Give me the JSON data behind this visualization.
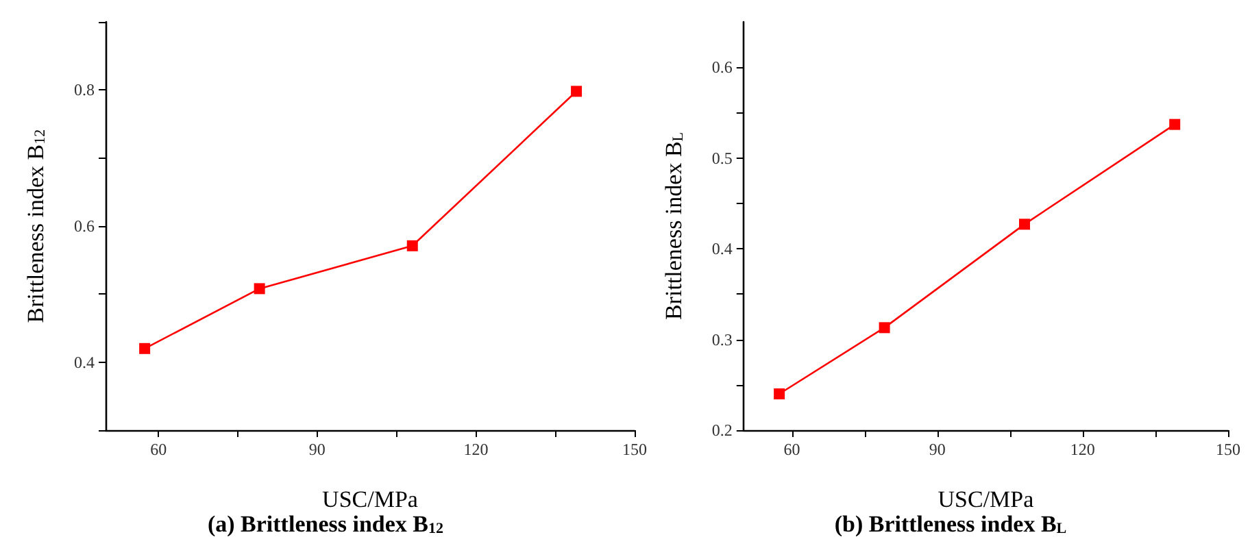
{
  "chart_data": [
    {
      "type": "line",
      "title": "(a) Brittleness index B$_{12}$",
      "xlabel": "USC/MPa",
      "ylabel": "Brittleness index B$_{12}$",
      "x": [
        57.4,
        79.1,
        108,
        139
      ],
      "series": [
        {
          "color": "#ff0000",
          "values": [
            0.42,
            0.508,
            0.571,
            0.798
          ]
        }
      ],
      "xlim": [
        50,
        150
      ],
      "xticks": [
        60,
        {
          "value": 75,
          "label": null
        },
        90,
        {
          "value": 105,
          "label": null
        },
        120,
        {
          "value": 135,
          "label": null
        },
        150
      ],
      "ylim": [
        0.3,
        0.9
      ],
      "yticks": [
        {
          "value": 0.3,
          "label": null
        },
        0.4,
        {
          "value": 0.5,
          "label": null
        },
        0.6,
        {
          "value": 0.7,
          "label": null
        },
        0.8,
        {
          "value": 0.9,
          "label": null
        }
      ],
      "marker": "square",
      "grid": false
    },
    {
      "type": "line",
      "title": "(b) Brittleness index B$_{L}$",
      "xlabel": "USC/MPa",
      "ylabel": "Brittleness index B$_{L}$",
      "x": [
        57.4,
        79.1,
        108,
        139
      ],
      "series": [
        {
          "color": "#ff0000",
          "values": [
            0.24,
            0.313,
            0.427,
            0.537
          ]
        }
      ],
      "xlim": [
        50,
        150
      ],
      "xticks": [
        60,
        {
          "value": 75,
          "label": null
        },
        90,
        {
          "value": 105,
          "label": null
        },
        120,
        {
          "value": 135,
          "label": null
        },
        150
      ],
      "ylim": [
        0.2,
        0.65
      ],
      "yticks": [
        0.2,
        {
          "value": 0.25,
          "label": null
        },
        0.3,
        {
          "value": 0.35,
          "label": null
        },
        0.4,
        {
          "value": 0.45,
          "label": null
        },
        0.5,
        {
          "value": 0.55,
          "label": null
        },
        0.6
      ],
      "marker": "square",
      "grid": false
    }
  ]
}
